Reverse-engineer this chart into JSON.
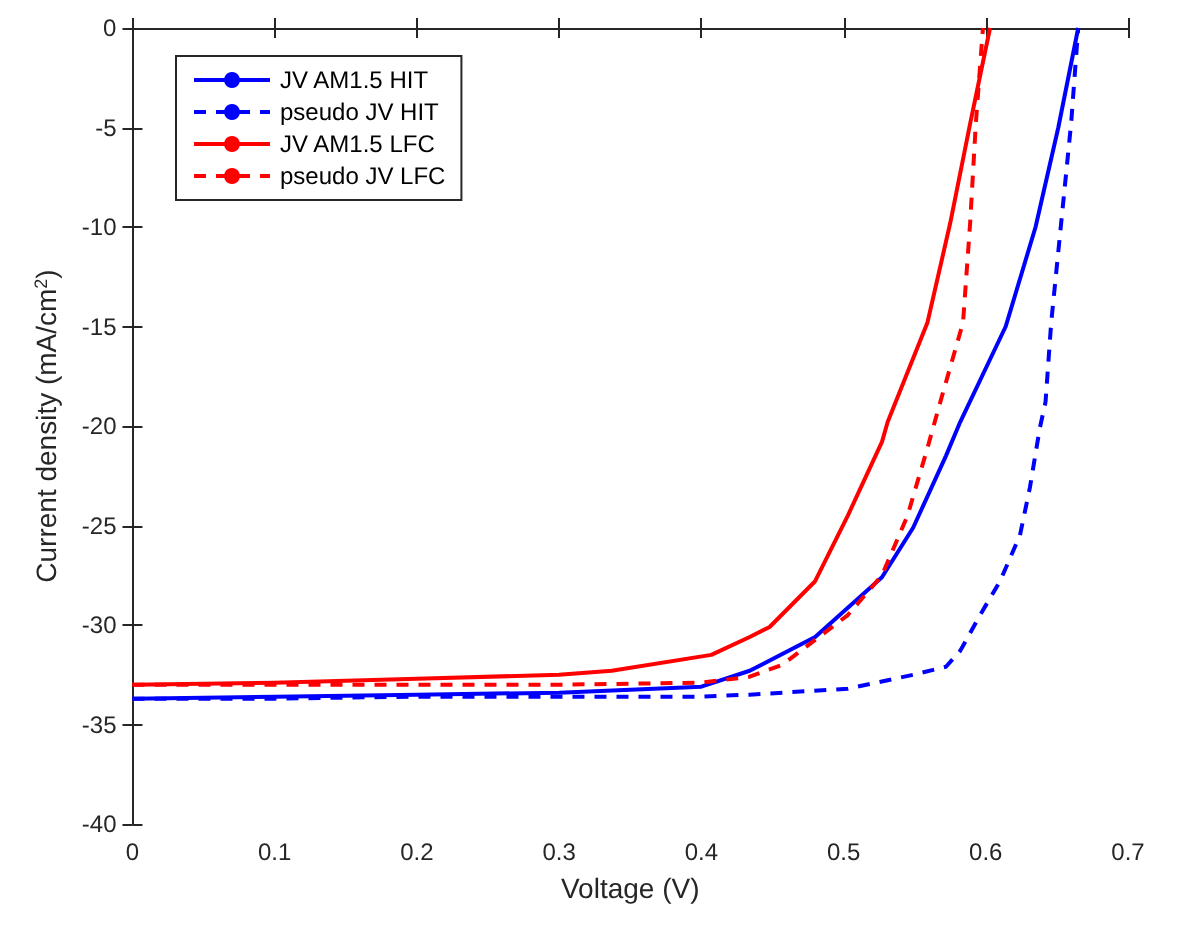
{
  "chart_data": {
    "type": "line",
    "xlabel": "Voltage (V)",
    "ylabel": "Current density (mA/cm$^{2}$)",
    "xlim": [
      0,
      0.7
    ],
    "ylim": [
      -40,
      0
    ],
    "xticks": [
      0,
      0.1,
      0.2,
      0.3,
      0.4,
      0.5,
      0.6,
      0.7
    ],
    "yticks": [
      -40,
      -35,
      -30,
      -25,
      -20,
      -15,
      -10,
      -5,
      0
    ],
    "grid": false,
    "legend": "top left",
    "marker": "none",
    "series": [
      {
        "name": "JV AM1.5 HIT",
        "color": "#0000ff",
        "line_style": "solid",
        "x": [
          0,
          0.1,
          0.2,
          0.3,
          0.4,
          0.434,
          0.48,
          0.527,
          0.549,
          0.572,
          0.582,
          0.614,
          0.635,
          0.651,
          0.665
        ],
        "values": [
          -33.7,
          -33.6,
          -33.5,
          -33.4,
          -33.1,
          -32.3,
          -30.6,
          -27.6,
          -25.1,
          -21.5,
          -19.8,
          -15,
          -10,
          -5,
          0
        ]
      },
      {
        "name": "pseudo JV HIT",
        "color": "#0000ff",
        "line_style": "dashed",
        "x": [
          0,
          0.1,
          0.2,
          0.3,
          0.4,
          0.434,
          0.503,
          0.549,
          0.572,
          0.582,
          0.596,
          0.61,
          0.624,
          0.631,
          0.638,
          0.642,
          0.646,
          0.653,
          0.66,
          0.665
        ],
        "values": [
          -33.7,
          -33.7,
          -33.6,
          -33.6,
          -33.6,
          -33.5,
          -33.2,
          -32.5,
          -32.1,
          -31.3,
          -29.5,
          -27.8,
          -25.5,
          -23.1,
          -20.1,
          -18.8,
          -14.8,
          -9.8,
          -4.8,
          0
        ]
      },
      {
        "name": "JV AM1.5 LFC",
        "color": "#ff0000",
        "line_style": "solid",
        "x": [
          0,
          0.1,
          0.2,
          0.3,
          0.337,
          0.407,
          0.434,
          0.448,
          0.48,
          0.503,
          0.527,
          0.531,
          0.559,
          0.575,
          0.589,
          0.603
        ],
        "values": [
          -33,
          -32.9,
          -32.7,
          -32.5,
          -32.3,
          -31.5,
          -30.6,
          -30.1,
          -27.8,
          -24.5,
          -20.8,
          -19.8,
          -14.8,
          -9.8,
          -4.8,
          0
        ]
      },
      {
        "name": "pseudo JV LFC",
        "color": "#ff0000",
        "line_style": "dashed",
        "x": [
          0,
          0.1,
          0.2,
          0.3,
          0.4,
          0.434,
          0.457,
          0.503,
          0.527,
          0.545,
          0.559,
          0.568,
          0.584,
          0.589,
          0.593,
          0.598
        ],
        "values": [
          -33,
          -33,
          -33,
          -33,
          -32.9,
          -32.6,
          -32,
          -29.5,
          -27.5,
          -24.5,
          -21.1,
          -18.8,
          -14.8,
          -9.8,
          -4.8,
          0
        ]
      }
    ]
  }
}
